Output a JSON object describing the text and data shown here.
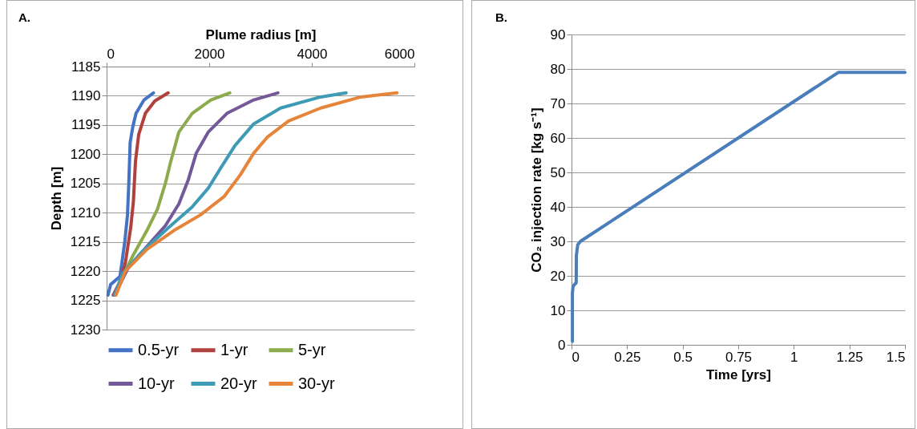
{
  "chart_data": [
    {
      "type": "line",
      "title": "A.",
      "xlabel": "Plume radius [m]",
      "ylabel": "Depth [m]",
      "xlim": [
        0,
        6000
      ],
      "xticks": [
        0,
        2000,
        4000,
        6000
      ],
      "ylim": [
        1230,
        1185
      ],
      "yticks": [
        1185,
        1190,
        1195,
        1200,
        1205,
        1210,
        1215,
        1220,
        1225,
        1230
      ],
      "grid": "y",
      "legend": "bottom",
      "series": [
        {
          "name": "0.5-yr",
          "color": "#4472c4",
          "x": [
            913,
            730,
            574,
            511,
            459,
            433,
            407,
            355,
            261,
            78,
            26
          ],
          "values": [
            1189.5,
            1190.7,
            1193,
            1195.3,
            1198,
            1204.9,
            1210.4,
            1214.9,
            1220.9,
            1222.3,
            1224.1
          ]
        },
        {
          "name": "1-yr",
          "color": "#b0413e",
          "x": [
            1200,
            939,
            756,
            626,
            563,
            522,
            469,
            365,
            261,
            130
          ],
          "values": [
            1189.5,
            1190.9,
            1193,
            1196.6,
            1201.2,
            1208.1,
            1212.6,
            1218.6,
            1221.8,
            1224.1
          ]
        },
        {
          "name": "5-yr",
          "color": "#8cab4c",
          "x": [
            2400,
            2034,
            1669,
            1409,
            1252,
            1148,
            991,
            783,
            522,
            313,
            156
          ],
          "values": [
            1189.5,
            1190.7,
            1193,
            1196.2,
            1201.2,
            1204.9,
            1209.4,
            1213.1,
            1217.2,
            1220.9,
            1224.1
          ]
        },
        {
          "name": "10-yr",
          "color": "#73589a",
          "x": [
            3339,
            2869,
            2347,
            1982,
            1748,
            1591,
            1409,
            1148,
            783,
            417,
            156
          ],
          "values": [
            1189.5,
            1190.7,
            1193,
            1196.2,
            1199.8,
            1204.4,
            1208.5,
            1212.2,
            1215.8,
            1219.5,
            1224.1
          ]
        },
        {
          "name": "20-yr",
          "color": "#3e9bb5",
          "x": [
            4669,
            4173,
            3391,
            2869,
            2504,
            2243,
            1982,
            1669,
            1200,
            678,
            313,
            156
          ],
          "values": [
            1189.5,
            1190.2,
            1192.1,
            1194.8,
            1198.5,
            1202.1,
            1205.8,
            1209,
            1212.6,
            1216.8,
            1220.4,
            1224.1
          ]
        },
        {
          "name": "30-yr",
          "color": "#e6843a",
          "x": [
            5660,
            4956,
            4173,
            3547,
            3130,
            2869,
            2608,
            2295,
            1826,
            1304,
            783,
            365,
            183
          ],
          "values": [
            1189.5,
            1190.2,
            1192.1,
            1194.3,
            1197.1,
            1199.8,
            1203.5,
            1207.2,
            1210.4,
            1213.1,
            1216.3,
            1220,
            1224.1
          ]
        }
      ]
    },
    {
      "type": "line",
      "title": "B.",
      "xlabel": "Time [yrs]",
      "ylabel": "CO₂ injection rate [kg s⁻¹]",
      "xlim": [
        0,
        1.5
      ],
      "xticks": [
        0,
        0.25,
        0.5,
        0.75,
        1,
        1.25,
        1.5
      ],
      "ylim": [
        0,
        90
      ],
      "yticks": [
        0,
        10,
        20,
        30,
        40,
        50,
        60,
        70,
        80,
        90
      ],
      "grid": "y",
      "series": [
        {
          "color": "#4a7ebb",
          "x": [
            0.004,
            0.004,
            0.007,
            0.021,
            0.022,
            0.028,
            0.04,
            1.2,
            1.5
          ],
          "values": [
            1,
            15,
            17,
            18,
            26,
            29,
            30,
            79,
            79
          ]
        }
      ]
    }
  ]
}
